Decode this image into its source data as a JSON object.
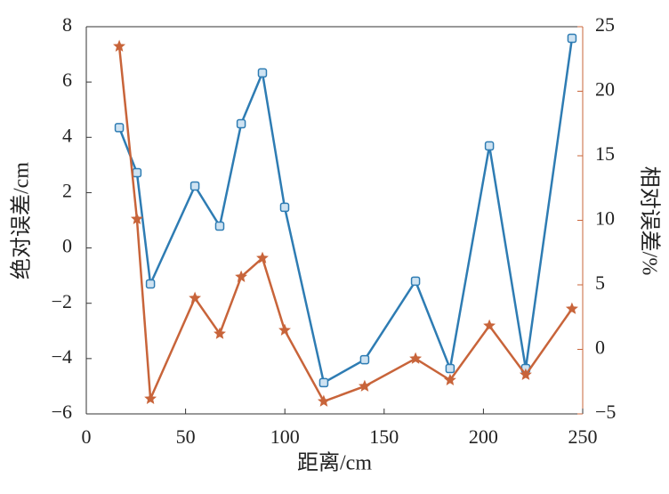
{
  "chart_data": {
    "type": "line",
    "x_label": "距离/cm",
    "y_label": "绝对误差/cm",
    "y2_label": "相对误差/%",
    "x": [
      16.6,
      25.5,
      32.3,
      54.7,
      67.2,
      78,
      88.7,
      99.9,
      119.6,
      140.2,
      165.8,
      183.2,
      203,
      221.3,
      244.6
    ],
    "series": [
      {
        "color": "#2e7cb3",
        "marker": "square",
        "values": [
          4.35,
          2.72,
          -1.3,
          2.24,
          0.79,
          4.49,
          6.33,
          1.47,
          -4.87,
          -4.04,
          -1.2,
          -4.36,
          3.69,
          -4.36,
          7.58
        ]
      },
      {
        "color": "#c8643a",
        "marker": "star",
        "axis": "y2",
        "values": [
          23.48,
          10.1,
          -3.83,
          3.97,
          1.21,
          5.62,
          7.07,
          1.48,
          -4.03,
          -2.86,
          -0.72,
          -2.38,
          1.83,
          -1.97,
          3.14
        ]
      }
    ],
    "xlim": [
      0,
      250
    ],
    "xticks": [
      0,
      50,
      100,
      150,
      200,
      250
    ],
    "ylim": [
      -6,
      8
    ],
    "yticks": [
      {
        "value": -6,
        "label": "−6"
      },
      {
        "value": -4,
        "label": "−4"
      },
      {
        "value": -2,
        "label": "−2"
      },
      0,
      2,
      4,
      6,
      8
    ],
    "y2lim": [
      -5,
      25
    ],
    "y2ticks": [
      {
        "value": -5,
        "label": "−5"
      },
      0,
      5,
      10,
      15,
      20,
      25
    ],
    "y2_axis_color": "#c8643a"
  }
}
